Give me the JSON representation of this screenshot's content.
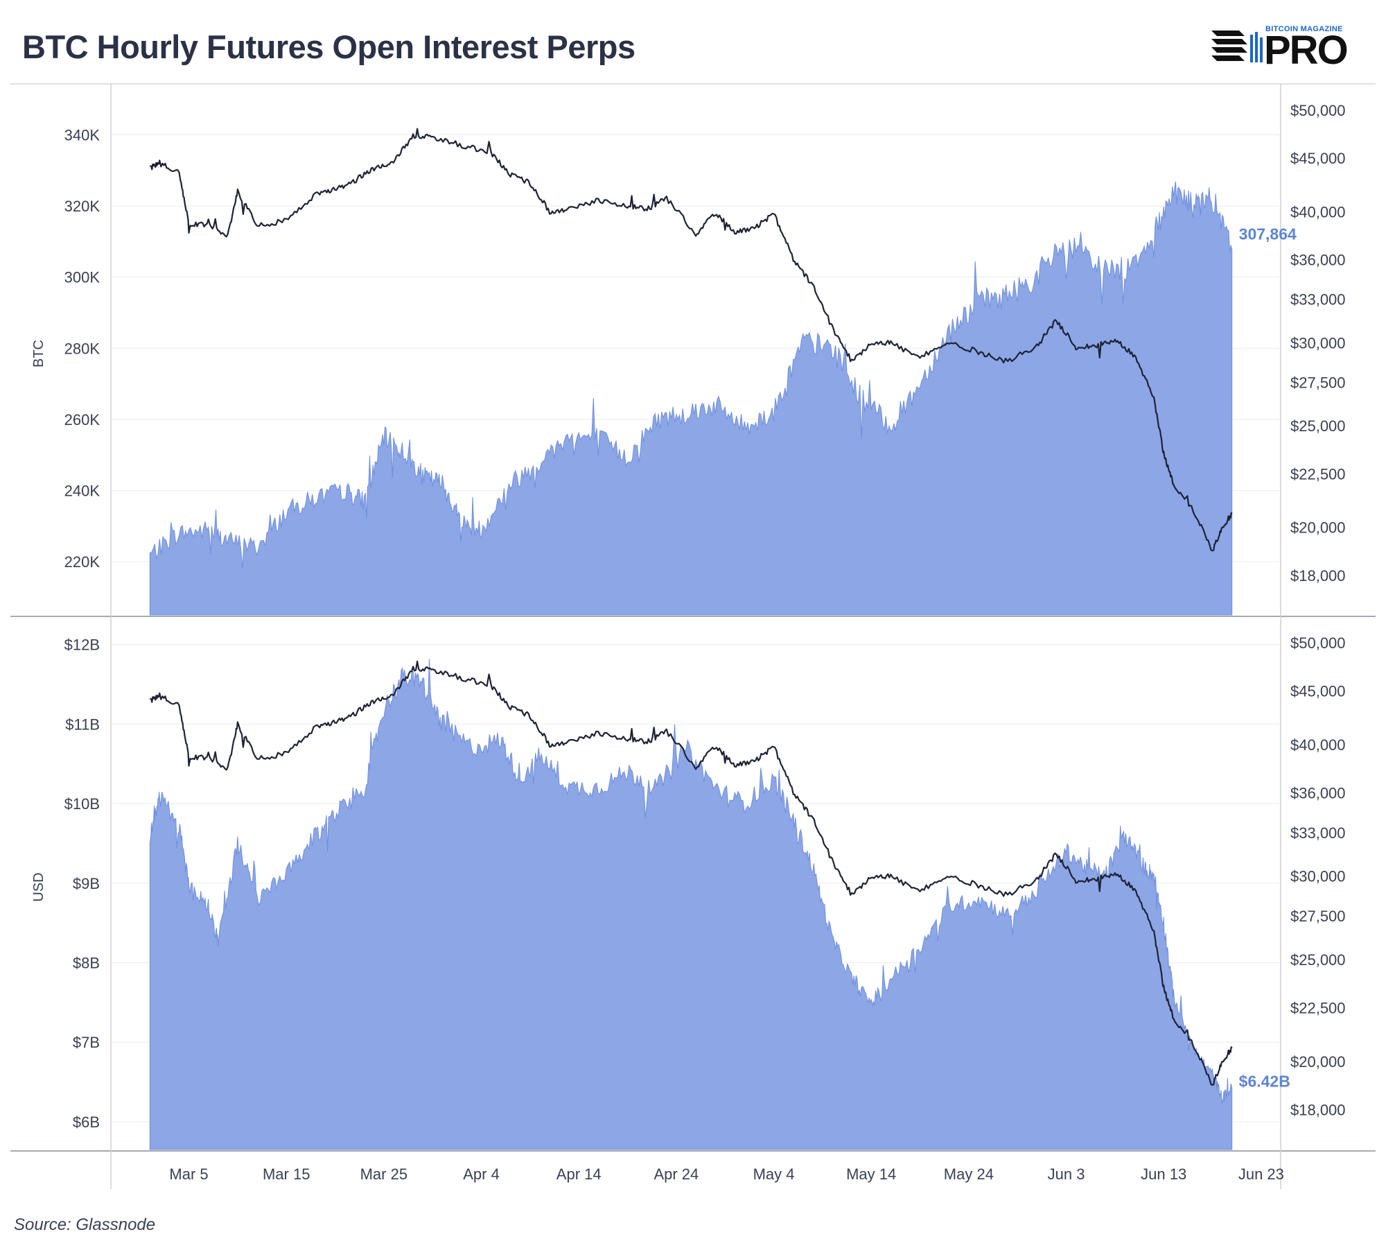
{
  "header": {
    "title": "BTC Hourly Futures Open Interest Perps"
  },
  "logo": {
    "top_text": "BITCOIN MAGAZINE",
    "main_text": "PRO",
    "name": "bitcoin-magazine-pro-logo"
  },
  "footer": {
    "source": "Source: Glassnode"
  },
  "colors": {
    "area": "#8ca6e6",
    "area_edge": "#6f8fdc",
    "price": "#1e2235",
    "end_label": "#5d85d6",
    "grid": "#ececef",
    "axis": "#cfd0d6"
  },
  "chart_data": [
    {
      "type": "area",
      "panel": "top",
      "ylabel": "BTC",
      "yticks": [
        220000,
        240000,
        260000,
        280000,
        300000,
        320000,
        340000
      ],
      "ytick_labels": [
        "220K",
        "240K",
        "260K",
        "280K",
        "300K",
        "320K",
        "340K"
      ],
      "ylim": [
        205000,
        352000
      ],
      "y2ticks": [
        18000,
        20000,
        22500,
        25000,
        27500,
        30000,
        33000,
        36000,
        40000,
        45000,
        50000
      ],
      "y2tick_labels": [
        "$18,000",
        "$20,000",
        "$22,500",
        "$25,000",
        "$27,500",
        "$30,000",
        "$33,000",
        "$36,000",
        "$40,000",
        "$45,000",
        "$50,000"
      ],
      "y2scale": "log",
      "end_label": "307,864",
      "series": [
        {
          "name": "",
          "kind": "area",
          "x": [
            "2022-03-01",
            "2022-03-04",
            "2022-03-07",
            "2022-03-09",
            "2022-03-12",
            "2022-03-15",
            "2022-03-18",
            "2022-03-21",
            "2022-03-23",
            "2022-03-25",
            "2022-03-27",
            "2022-03-29",
            "2022-03-31",
            "2022-04-02",
            "2022-04-04",
            "2022-04-07",
            "2022-04-10",
            "2022-04-13",
            "2022-04-16",
            "2022-04-19",
            "2022-04-22",
            "2022-04-25",
            "2022-04-28",
            "2022-05-01",
            "2022-05-04",
            "2022-05-07",
            "2022-05-10",
            "2022-05-13",
            "2022-05-16",
            "2022-05-19",
            "2022-05-22",
            "2022-05-25",
            "2022-05-28",
            "2022-05-31",
            "2022-06-03",
            "2022-06-06",
            "2022-06-09",
            "2022-06-12",
            "2022-06-14",
            "2022-06-16",
            "2022-06-18",
            "2022-06-20"
          ],
          "values": [
            222000,
            228000,
            229000,
            226000,
            224000,
            234000,
            238000,
            240000,
            237000,
            255000,
            251000,
            244000,
            242000,
            231000,
            229000,
            242000,
            248000,
            255000,
            255000,
            249000,
            260000,
            262000,
            264000,
            258000,
            262000,
            282000,
            280000,
            266000,
            258000,
            270000,
            285000,
            293000,
            295000,
            300000,
            310000,
            303000,
            302000,
            312000,
            325000,
            320000,
            322000,
            307864
          ]
        },
        {
          "name": "",
          "kind": "line",
          "axis": "y2",
          "x": [
            "2022-03-01",
            "2022-03-02",
            "2022-03-04",
            "2022-03-05",
            "2022-03-07",
            "2022-03-09",
            "2022-03-10",
            "2022-03-12",
            "2022-03-15",
            "2022-03-18",
            "2022-03-20",
            "2022-03-22",
            "2022-03-24",
            "2022-03-26",
            "2022-03-28",
            "2022-03-30",
            "2022-04-02",
            "2022-04-05",
            "2022-04-07",
            "2022-04-09",
            "2022-04-11",
            "2022-04-13",
            "2022-04-16",
            "2022-04-19",
            "2022-04-21",
            "2022-04-23",
            "2022-04-26",
            "2022-04-28",
            "2022-04-30",
            "2022-05-02",
            "2022-05-04",
            "2022-05-06",
            "2022-05-08",
            "2022-05-10",
            "2022-05-12",
            "2022-05-14",
            "2022-05-16",
            "2022-05-19",
            "2022-05-22",
            "2022-05-25",
            "2022-05-28",
            "2022-05-31",
            "2022-06-02",
            "2022-06-04",
            "2022-06-06",
            "2022-06-08",
            "2022-06-10",
            "2022-06-12",
            "2022-06-13",
            "2022-06-14",
            "2022-06-16",
            "2022-06-18",
            "2022-06-19",
            "2022-06-20"
          ],
          "values": [
            44000,
            44500,
            43500,
            39000,
            38800,
            38000,
            41800,
            38800,
            39200,
            41500,
            42000,
            42800,
            44000,
            44700,
            47200,
            47100,
            46300,
            45500,
            43400,
            42600,
            40000,
            40200,
            41000,
            40500,
            40200,
            41200,
            38100,
            39800,
            38300,
            38600,
            39800,
            36000,
            34000,
            31000,
            28800,
            30000,
            30000,
            29000,
            30000,
            29400,
            28800,
            29800,
            31500,
            29700,
            29800,
            30200,
            29200,
            26500,
            23500,
            22000,
            20800,
            19000,
            20000,
            20600
          ]
        }
      ]
    },
    {
      "type": "area",
      "panel": "bottom",
      "ylabel": "USD",
      "yticks": [
        6,
        7,
        8,
        9,
        10,
        11,
        12
      ],
      "ytick_labels": [
        "$6B",
        "$7B",
        "$8B",
        "$9B",
        "$10B",
        "$11B",
        "$12B"
      ],
      "ylim": [
        5.65,
        12.25
      ],
      "y2ticks": [
        18000,
        20000,
        22500,
        25000,
        27500,
        30000,
        33000,
        36000,
        40000,
        45000,
        50000
      ],
      "y2tick_labels": [
        "$18,000",
        "$20,000",
        "$22,500",
        "$25,000",
        "$27,500",
        "$30,000",
        "$33,000",
        "$36,000",
        "$40,000",
        "$45,000",
        "$50,000"
      ],
      "y2scale": "log",
      "end_label": "$6.42B",
      "xticks": [
        "2022-03-05",
        "2022-03-15",
        "2022-03-25",
        "2022-04-04",
        "2022-04-14",
        "2022-04-24",
        "2022-05-04",
        "2022-05-14",
        "2022-05-24",
        "2022-06-03",
        "2022-06-13",
        "2022-06-23"
      ],
      "xtick_labels": [
        "Mar 5",
        "Mar 15",
        "Mar 25",
        "Apr 4",
        "Apr 14",
        "Apr 24",
        "May 4",
        "May 14",
        "May 24",
        "Jun 3",
        "Jun 13",
        "Jun 23"
      ],
      "xlim": [
        "2022-02-25",
        "2022-06-25"
      ],
      "series": [
        {
          "name": "",
          "kind": "area",
          "x": [
            "2022-03-01",
            "2022-03-02",
            "2022-03-04",
            "2022-03-05",
            "2022-03-07",
            "2022-03-08",
            "2022-03-10",
            "2022-03-12",
            "2022-03-15",
            "2022-03-18",
            "2022-03-20",
            "2022-03-23",
            "2022-03-25",
            "2022-03-27",
            "2022-03-29",
            "2022-03-31",
            "2022-04-03",
            "2022-04-06",
            "2022-04-08",
            "2022-04-10",
            "2022-04-13",
            "2022-04-16",
            "2022-04-19",
            "2022-04-22",
            "2022-04-25",
            "2022-04-28",
            "2022-05-01",
            "2022-05-04",
            "2022-05-06",
            "2022-05-08",
            "2022-05-10",
            "2022-05-12",
            "2022-05-14",
            "2022-05-16",
            "2022-05-19",
            "2022-05-22",
            "2022-05-25",
            "2022-05-28",
            "2022-05-31",
            "2022-06-03",
            "2022-06-05",
            "2022-06-07",
            "2022-06-09",
            "2022-06-11",
            "2022-06-12",
            "2022-06-13",
            "2022-06-14",
            "2022-06-16",
            "2022-06-18",
            "2022-06-19",
            "2022-06-20"
          ],
          "values": [
            9.6,
            10.1,
            9.7,
            9.0,
            8.7,
            8.3,
            9.5,
            8.8,
            9.1,
            9.6,
            9.9,
            10.2,
            11.2,
            11.6,
            11.5,
            11.0,
            10.7,
            10.8,
            10.3,
            10.6,
            10.2,
            10.2,
            10.4,
            10.2,
            10.7,
            10.2,
            10.0,
            10.3,
            9.8,
            9.2,
            8.3,
            7.8,
            7.5,
            7.8,
            8.2,
            8.7,
            8.8,
            8.6,
            8.9,
            9.4,
            9.2,
            9.1,
            9.6,
            9.2,
            9.1,
            8.5,
            7.6,
            6.9,
            6.6,
            6.3,
            6.42
          ]
        },
        {
          "name": "",
          "kind": "line",
          "axis": "y2",
          "x": [
            "2022-03-01",
            "2022-03-02",
            "2022-03-04",
            "2022-03-05",
            "2022-03-07",
            "2022-03-09",
            "2022-03-10",
            "2022-03-12",
            "2022-03-15",
            "2022-03-18",
            "2022-03-20",
            "2022-03-22",
            "2022-03-24",
            "2022-03-26",
            "2022-03-28",
            "2022-03-30",
            "2022-04-02",
            "2022-04-05",
            "2022-04-07",
            "2022-04-09",
            "2022-04-11",
            "2022-04-13",
            "2022-04-16",
            "2022-04-19",
            "2022-04-21",
            "2022-04-23",
            "2022-04-26",
            "2022-04-28",
            "2022-04-30",
            "2022-05-02",
            "2022-05-04",
            "2022-05-06",
            "2022-05-08",
            "2022-05-10",
            "2022-05-12",
            "2022-05-14",
            "2022-05-16",
            "2022-05-19",
            "2022-05-22",
            "2022-05-25",
            "2022-05-28",
            "2022-05-31",
            "2022-06-02",
            "2022-06-04",
            "2022-06-06",
            "2022-06-08",
            "2022-06-10",
            "2022-06-12",
            "2022-06-13",
            "2022-06-14",
            "2022-06-16",
            "2022-06-18",
            "2022-06-19",
            "2022-06-20"
          ],
          "values": [
            44000,
            44500,
            43500,
            39000,
            38800,
            38000,
            41800,
            38800,
            39200,
            41500,
            42000,
            42800,
            44000,
            44700,
            47200,
            47100,
            46300,
            45500,
            43400,
            42600,
            40000,
            40200,
            41000,
            40500,
            40200,
            41200,
            38100,
            39800,
            38300,
            38600,
            39800,
            36000,
            34000,
            31000,
            28800,
            30000,
            30000,
            29000,
            30000,
            29400,
            28800,
            29800,
            31500,
            29700,
            29800,
            30200,
            29200,
            26500,
            23500,
            22000,
            20800,
            19000,
            20000,
            20600
          ]
        }
      ]
    }
  ]
}
